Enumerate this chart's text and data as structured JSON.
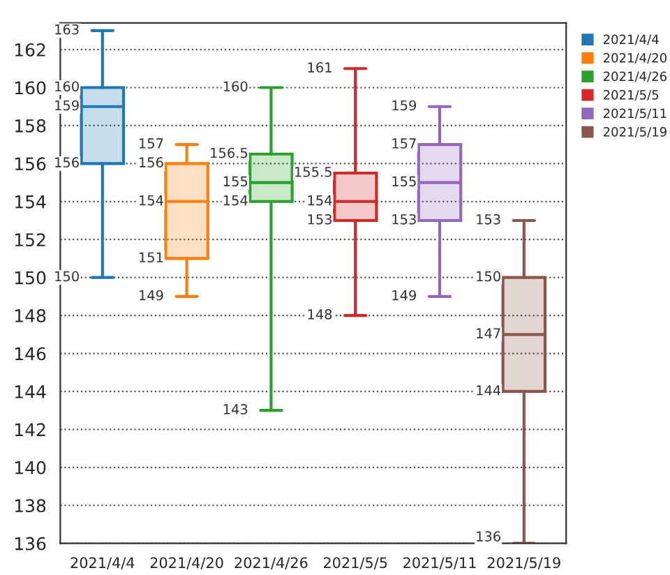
{
  "chart_data": {
    "type": "box",
    "categories": [
      "2021/4/4",
      "2021/4/20",
      "2021/4/26",
      "2021/5/5",
      "2021/5/11",
      "2021/5/19"
    ],
    "series": [
      {
        "name": "2021/4/4",
        "color": "#1f77b4",
        "boxes": [
          {
            "low": 150,
            "q1": 156,
            "median": 159,
            "q3": 160,
            "high": 163
          },
          null,
          null,
          null,
          null,
          null
        ]
      },
      {
        "name": "2021/4/20",
        "color": "#ff7f0e",
        "boxes": [
          null,
          {
            "low": 149,
            "q1": 151,
            "median": 154,
            "q3": 156,
            "high": 157
          },
          null,
          null,
          null,
          null
        ]
      },
      {
        "name": "2021/4/26",
        "color": "#2ca02c",
        "boxes": [
          null,
          null,
          {
            "low": 143,
            "q1": 154,
            "median": 155,
            "q3": 156.5,
            "high": 160
          },
          null,
          null,
          null
        ]
      },
      {
        "name": "2021/5/5",
        "color": "#d62728",
        "boxes": [
          null,
          null,
          null,
          {
            "low": 148,
            "q1": 153,
            "median": 154,
            "q3": 155.5,
            "high": 161
          },
          null,
          null
        ]
      },
      {
        "name": "2021/5/11",
        "color": "#9467bd",
        "boxes": [
          null,
          null,
          null,
          null,
          {
            "low": 149,
            "q1": 153,
            "median": 155,
            "q3": 157,
            "high": 159
          },
          null
        ]
      },
      {
        "name": "2021/5/19",
        "color": "#8c564b",
        "boxes": [
          null,
          null,
          null,
          null,
          null,
          {
            "low": 136,
            "q1": 144,
            "median": 147,
            "q3": 150,
            "high": 153
          }
        ]
      }
    ],
    "annotations": [
      {
        "text": "163",
        "x": "2021/4/4",
        "y": 163
      },
      {
        "text": "160",
        "x": "2021/4/4",
        "y": 160
      },
      {
        "text": "159",
        "x": "2021/4/4",
        "y": 159
      },
      {
        "text": "156",
        "x": "2021/4/4",
        "y": 156
      },
      {
        "text": "150",
        "x": "2021/4/4",
        "y": 150
      },
      {
        "text": "157",
        "x": "2021/4/20",
        "y": 157
      },
      {
        "text": "156",
        "x": "2021/4/20",
        "y": 156
      },
      {
        "text": "154",
        "x": "2021/4/20",
        "y": 154
      },
      {
        "text": "151",
        "x": "2021/4/20",
        "y": 151
      },
      {
        "text": "149",
        "x": "2021/4/20",
        "y": 149
      },
      {
        "text": "160",
        "x": "2021/4/26",
        "y": 160
      },
      {
        "text": "156.5",
        "x": "2021/4/26",
        "y": 156.5
      },
      {
        "text": "155",
        "x": "2021/4/26",
        "y": 155
      },
      {
        "text": "154",
        "x": "2021/4/26",
        "y": 154
      },
      {
        "text": "143",
        "x": "2021/4/26",
        "y": 143
      },
      {
        "text": "161",
        "x": "2021/5/5",
        "y": 161
      },
      {
        "text": "155.5",
        "x": "2021/5/5",
        "y": 155.5
      },
      {
        "text": "154",
        "x": "2021/5/5",
        "y": 154
      },
      {
        "text": "153",
        "x": "2021/5/5",
        "y": 153
      },
      {
        "text": "148",
        "x": "2021/5/5",
        "y": 148
      },
      {
        "text": "159",
        "x": "2021/5/11",
        "y": 159
      },
      {
        "text": "157",
        "x": "2021/5/11",
        "y": 157
      },
      {
        "text": "155",
        "x": "2021/5/11",
        "y": 155
      },
      {
        "text": "153",
        "x": "2021/5/11",
        "y": 153
      },
      {
        "text": "149",
        "x": "2021/5/11",
        "y": 149
      },
      {
        "text": "153",
        "x": "2021/5/19",
        "y": 153
      },
      {
        "text": "150",
        "x": "2021/5/19",
        "y": 150
      },
      {
        "text": "147",
        "x": "2021/5/19",
        "y": 147
      },
      {
        "text": "144",
        "x": "2021/5/19",
        "y": 144
      },
      {
        "text": "136",
        "x": "2021/5/19",
        "y": 136
      }
    ],
    "ylim": [
      136,
      163.4
    ],
    "yticks": [
      136,
      138,
      140,
      142,
      144,
      146,
      148,
      150,
      152,
      154,
      156,
      158,
      160,
      162
    ],
    "grid": "y",
    "legend": "right"
  }
}
